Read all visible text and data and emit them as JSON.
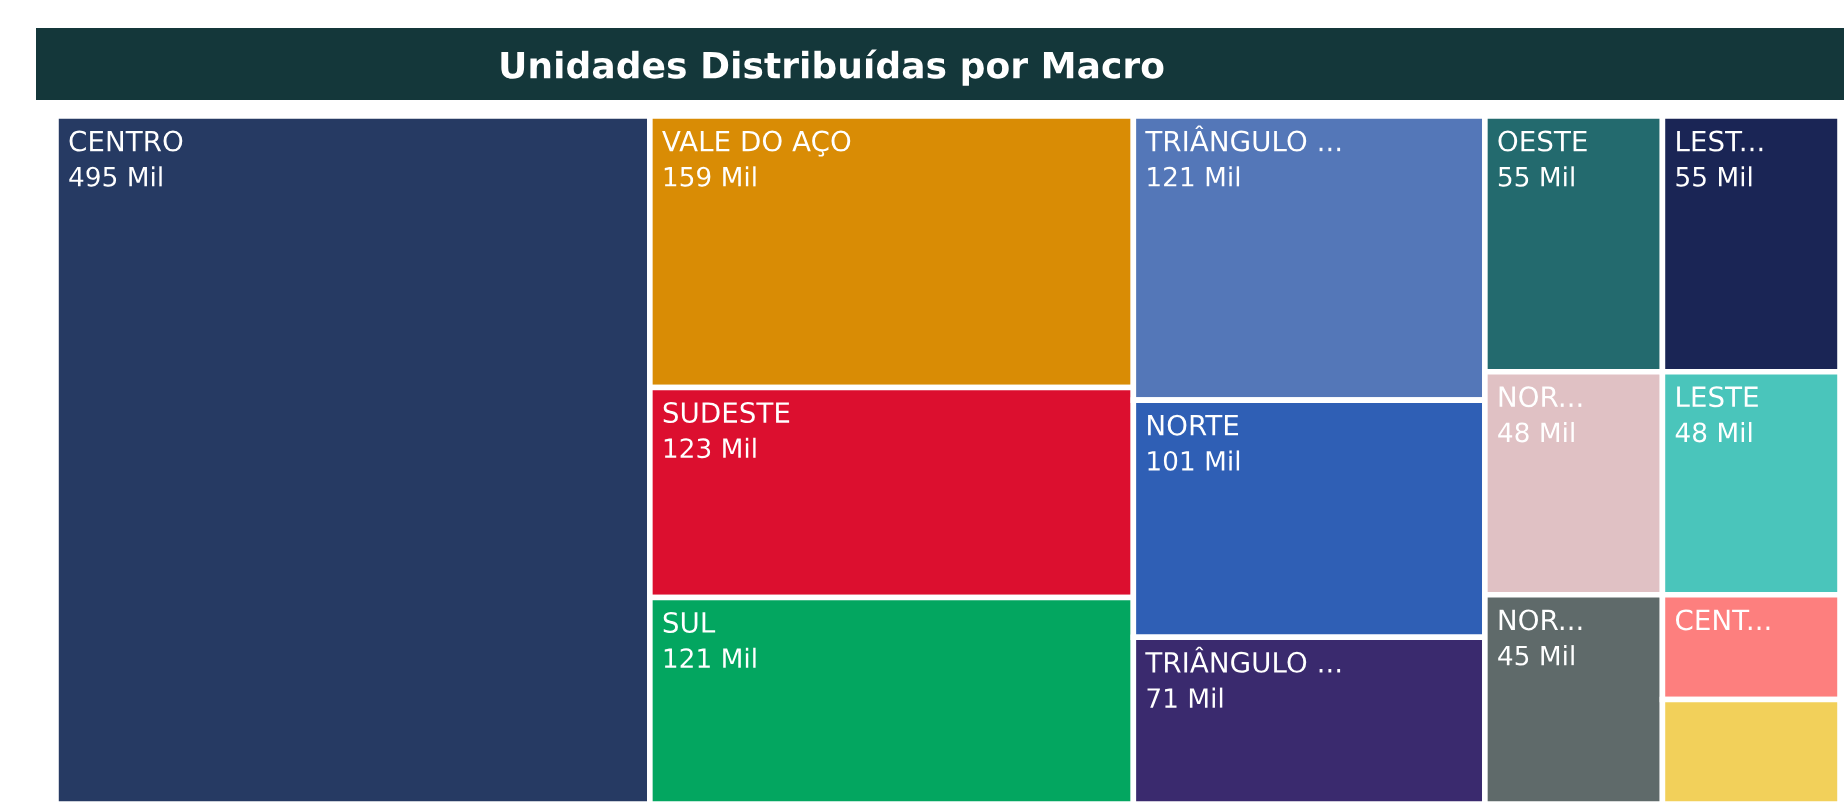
{
  "chart_data": {
    "type": "other",
    "title": "Unidades Distribuídas por Macro",
    "categories": [
      "CENTRO",
      "VALE DO AÇO",
      "SUDESTE",
      "SUL",
      "TRIÂNGULO ...",
      "NORTE",
      "TRIÂNGULO ...",
      "OESTE",
      "NOR...",
      "NOR...",
      "LEST...",
      "LESTE",
      "CENT...",
      null
    ],
    "values": [
      495,
      159,
      123,
      121,
      121,
      101,
      71,
      55,
      48,
      45,
      55,
      48,
      null,
      null
    ],
    "value_labels": [
      "495 Mil",
      "159 Mil",
      "123 Mil",
      "121 Mil",
      "121 Mil",
      "101 Mil",
      "71 Mil",
      "55 Mil",
      "48 Mil",
      "45 Mil",
      "55 Mil",
      "48 Mil",
      null,
      null
    ],
    "colors": [
      "#263a63",
      "#d98c05",
      "#dc0f2f",
      "#03a660",
      "#5477b8",
      "#2f5fb5",
      "#3a2a6e",
      "#236a6e",
      "#e0c1c4",
      "#5f6a6a",
      "#1a2555",
      "#4ac5bb",
      "#fd7f7e",
      "#f2d05a"
    ]
  }
}
